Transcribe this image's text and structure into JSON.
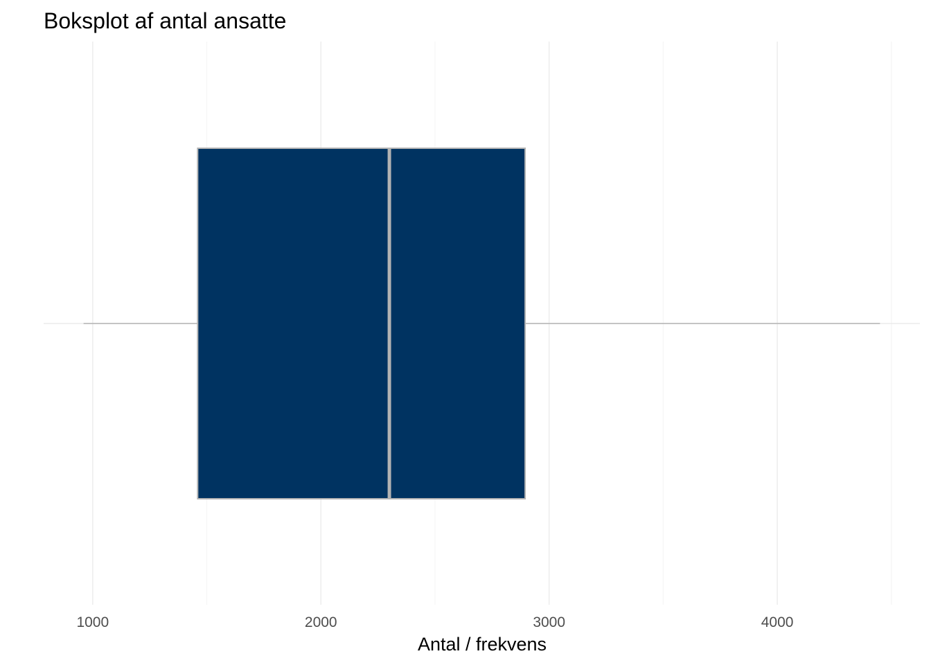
{
  "chart_data": {
    "type": "boxplot",
    "title": "Boksplot af antal ansatte",
    "xlabel": "Antal / frekvens",
    "ylabel": "",
    "orientation": "horizontal",
    "xlim": [
      785,
      4625
    ],
    "major_ticks": [
      1000,
      2000,
      3000,
      4000
    ],
    "tick_labels": [
      "1000",
      "2000",
      "3000",
      "4000"
    ],
    "minor_gridlines": [
      1500,
      2500,
      3500,
      4500
    ],
    "grid": true,
    "box": {
      "whisker_low": 960,
      "q1": 1460,
      "median": 2300,
      "q3": 2895,
      "whisker_high": 4450
    },
    "colors": {
      "box_fill": "#003361",
      "box_outline": "#b3b3b3",
      "whisker": "#b3b3b3",
      "grid_major": "#ebebeb",
      "grid_minor": "#f5f5f5"
    }
  }
}
